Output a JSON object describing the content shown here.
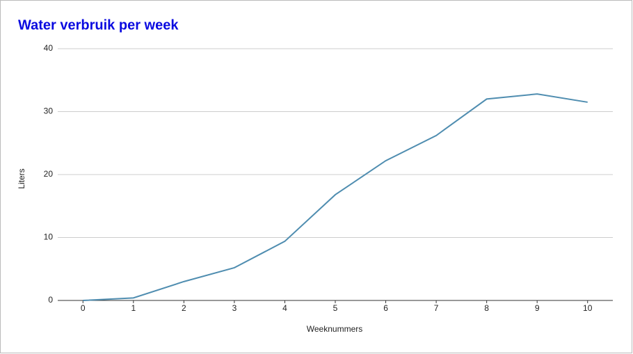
{
  "chart_data": {
    "type": "line",
    "title": "Water verbruik per week",
    "x_label": "Weeknummers",
    "y_label": "Liters",
    "x": [
      0,
      1,
      2,
      3,
      4,
      5,
      6,
      7,
      8,
      9,
      10
    ],
    "series": [
      {
        "name": "Liters",
        "color": "#4f8db0",
        "values": [
          0,
          0.4,
          3,
          5.2,
          9.4,
          16.8,
          22.2,
          26.2,
          32,
          32.8,
          31.5
        ]
      }
    ],
    "xlim": [
      -0.5,
      10.5
    ],
    "xticks": [
      0,
      1,
      2,
      3,
      4,
      5,
      6,
      7,
      8,
      9,
      10
    ],
    "ylim": [
      0,
      40
    ],
    "yticks": [
      0,
      10,
      20,
      30,
      40
    ],
    "grid": true,
    "legend": false
  }
}
